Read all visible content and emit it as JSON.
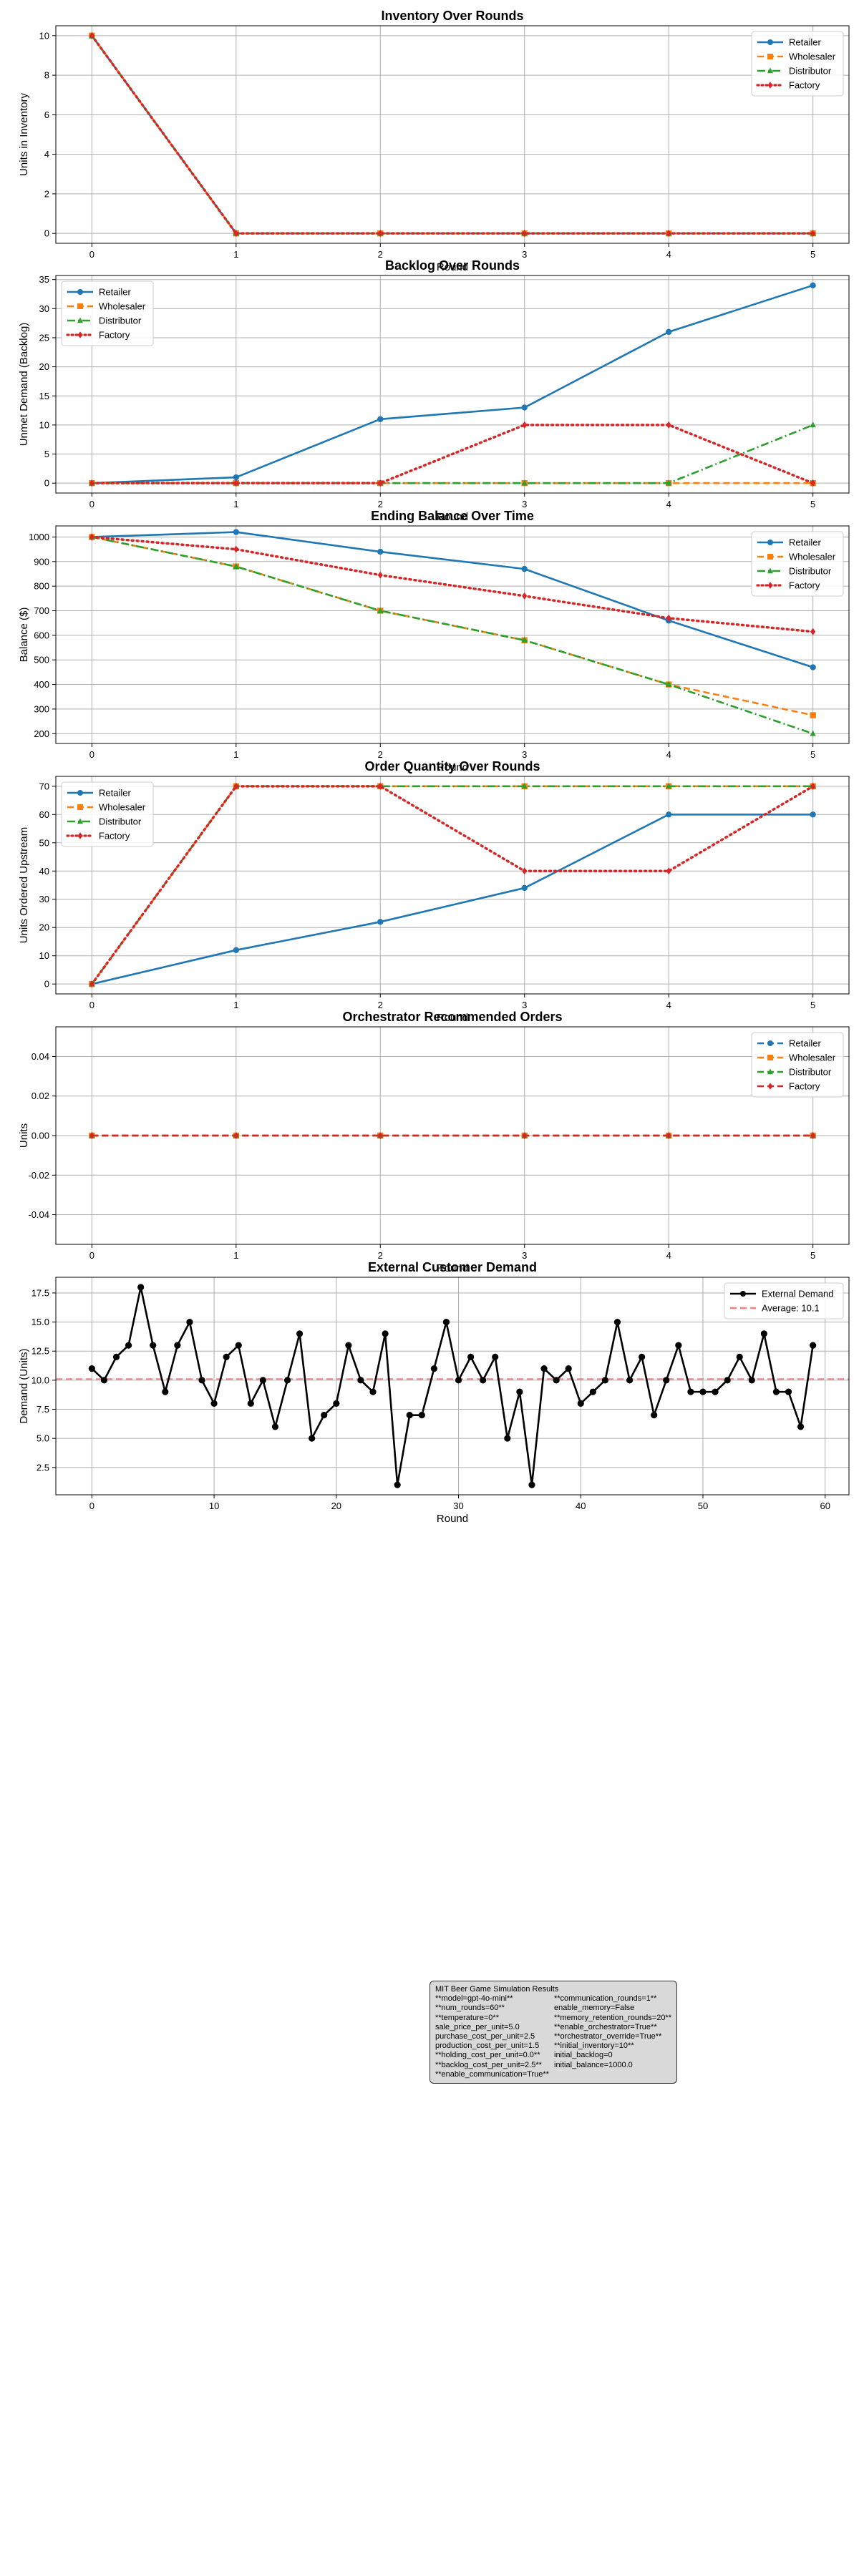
{
  "colors": {
    "retailer": "#1f77b4",
    "wholesaler": "#ff7f0e",
    "distributor": "#2ca02c",
    "factory": "#d62728",
    "external": "#000000",
    "average": "#ff7f7f"
  },
  "chart_data": [
    {
      "type": "line",
      "title": "Inventory Over Rounds",
      "xlabel": "Round",
      "ylabel": "Units in Inventory",
      "x": [
        0,
        1,
        2,
        3,
        4,
        5
      ],
      "xlim": [
        -0.25,
        5.25
      ],
      "ylim": [
        -0.5,
        10.5
      ],
      "xticks": [
        0,
        1,
        2,
        3,
        4,
        5
      ],
      "yticks": [
        0,
        2,
        4,
        6,
        8,
        10
      ],
      "grid": true,
      "legend": "upper-right",
      "series": [
        {
          "name": "Retailer",
          "values": [
            10,
            0,
            0,
            0,
            0,
            0
          ],
          "color": "#1f77b4",
          "style": "solid",
          "marker": "circle"
        },
        {
          "name": "Wholesaler",
          "values": [
            10,
            0,
            0,
            0,
            0,
            0
          ],
          "color": "#ff7f0e",
          "style": "dashed",
          "marker": "square"
        },
        {
          "name": "Distributor",
          "values": [
            10,
            0,
            0,
            0,
            0,
            0
          ],
          "color": "#2ca02c",
          "style": "dashdot",
          "marker": "triangle"
        },
        {
          "name": "Factory",
          "values": [
            10,
            0,
            0,
            0,
            0,
            0
          ],
          "color": "#d62728",
          "style": "dotted",
          "marker": "diamond"
        }
      ]
    },
    {
      "type": "line",
      "title": "Backlog Over Rounds",
      "xlabel": "Round",
      "ylabel": "Unmet Demand (Backlog)",
      "x": [
        0,
        1,
        2,
        3,
        4,
        5
      ],
      "xlim": [
        -0.25,
        5.25
      ],
      "ylim": [
        -1.7,
        35.7
      ],
      "xticks": [
        0,
        1,
        2,
        3,
        4,
        5
      ],
      "yticks": [
        0,
        5,
        10,
        15,
        20,
        25,
        30,
        35
      ],
      "grid": true,
      "legend": "upper-left",
      "series": [
        {
          "name": "Retailer",
          "values": [
            0,
            1,
            11,
            13,
            26,
            34
          ],
          "color": "#1f77b4",
          "style": "solid",
          "marker": "circle"
        },
        {
          "name": "Wholesaler",
          "values": [
            0,
            0,
            0,
            0,
            0,
            0
          ],
          "color": "#ff7f0e",
          "style": "dashed",
          "marker": "square"
        },
        {
          "name": "Distributor",
          "values": [
            0,
            0,
            0,
            0,
            0,
            10
          ],
          "color": "#2ca02c",
          "style": "dashdot",
          "marker": "triangle"
        },
        {
          "name": "Factory",
          "values": [
            0,
            0,
            0,
            10,
            10,
            0
          ],
          "color": "#d62728",
          "style": "dotted",
          "marker": "diamond"
        }
      ]
    },
    {
      "type": "line",
      "title": "Ending Balance Over Time",
      "xlabel": "Round",
      "ylabel": "Balance ($)",
      "x": [
        0,
        1,
        2,
        3,
        4,
        5
      ],
      "xlim": [
        -0.25,
        5.25
      ],
      "ylim": [
        160,
        1045
      ],
      "xticks": [
        0,
        1,
        2,
        3,
        4,
        5
      ],
      "yticks": [
        200,
        300,
        400,
        500,
        600,
        700,
        800,
        900,
        1000
      ],
      "grid": true,
      "legend": "upper-right",
      "series": [
        {
          "name": "Retailer",
          "values": [
            1000,
            1020,
            940,
            870,
            660,
            470
          ],
          "color": "#1f77b4",
          "style": "solid",
          "marker": "circle"
        },
        {
          "name": "Wholesaler",
          "values": [
            1000,
            880,
            700,
            580,
            400,
            275
          ],
          "color": "#ff7f0e",
          "style": "dashed",
          "marker": "square"
        },
        {
          "name": "Distributor",
          "values": [
            1000,
            880,
            700,
            580,
            400,
            200
          ],
          "color": "#2ca02c",
          "style": "dashdot",
          "marker": "triangle"
        },
        {
          "name": "Factory",
          "values": [
            1000,
            950,
            845,
            760,
            670,
            615
          ],
          "color": "#d62728",
          "style": "dotted",
          "marker": "diamond"
        }
      ]
    },
    {
      "type": "line",
      "title": "Order Quantity Over Rounds",
      "xlabel": "Round",
      "ylabel": "Units Ordered Upstream",
      "x": [
        0,
        1,
        2,
        3,
        4,
        5
      ],
      "xlim": [
        -0.25,
        5.25
      ],
      "ylim": [
        -3.5,
        73.5
      ],
      "xticks": [
        0,
        1,
        2,
        3,
        4,
        5
      ],
      "yticks": [
        0,
        10,
        20,
        30,
        40,
        50,
        60,
        70
      ],
      "grid": true,
      "legend": "upper-left",
      "series": [
        {
          "name": "Retailer",
          "values": [
            0,
            12,
            22,
            34,
            60,
            60
          ],
          "color": "#1f77b4",
          "style": "solid",
          "marker": "circle"
        },
        {
          "name": "Wholesaler",
          "values": [
            0,
            70,
            70,
            70,
            70,
            70
          ],
          "color": "#ff7f0e",
          "style": "dashed",
          "marker": "square"
        },
        {
          "name": "Distributor",
          "values": [
            0,
            70,
            70,
            70,
            70,
            70
          ],
          "color": "#2ca02c",
          "style": "dashdot",
          "marker": "triangle"
        },
        {
          "name": "Factory",
          "values": [
            0,
            70,
            70,
            40,
            40,
            70
          ],
          "color": "#d62728",
          "style": "dotted",
          "marker": "diamond"
        }
      ]
    },
    {
      "type": "line",
      "title": "Orchestrator Recommended Orders",
      "xlabel": "Round",
      "ylabel": "Units",
      "x": [
        0,
        1,
        2,
        3,
        4,
        5
      ],
      "xlim": [
        -0.25,
        5.25
      ],
      "ylim": [
        -0.055,
        0.055
      ],
      "xticks": [
        0,
        1,
        2,
        3,
        4,
        5
      ],
      "yticks": [
        -0.04,
        -0.02,
        0.0,
        0.02,
        0.04
      ],
      "yticklabels": [
        "-0.04",
        "-0.02",
        "0.00",
        "0.02",
        "0.04"
      ],
      "grid": true,
      "legend": "upper-right",
      "series": [
        {
          "name": "Retailer",
          "values": [
            0,
            0,
            0,
            0,
            0,
            0
          ],
          "color": "#1f77b4",
          "style": "dashed",
          "marker": "circle"
        },
        {
          "name": "Wholesaler",
          "values": [
            0,
            0,
            0,
            0,
            0,
            0
          ],
          "color": "#ff7f0e",
          "style": "dashed",
          "marker": "square"
        },
        {
          "name": "Distributor",
          "values": [
            0,
            0,
            0,
            0,
            0,
            0
          ],
          "color": "#2ca02c",
          "style": "dashed",
          "marker": "triangle"
        },
        {
          "name": "Factory",
          "values": [
            0,
            0,
            0,
            0,
            0,
            0
          ],
          "color": "#d62728",
          "style": "dashed",
          "marker": "diamond"
        }
      ]
    },
    {
      "type": "line",
      "title": "External Customer Demand",
      "xlabel": "Round",
      "ylabel": "Demand (Units)",
      "x": [
        0,
        1,
        2,
        3,
        4,
        5,
        6,
        7,
        8,
        9,
        10,
        11,
        12,
        13,
        14,
        15,
        16,
        17,
        18,
        19,
        20,
        21,
        22,
        23,
        24,
        25,
        26,
        27,
        28,
        29,
        30,
        31,
        32,
        33,
        34,
        35,
        36,
        37,
        38,
        39,
        40,
        41,
        42,
        43,
        44,
        45,
        46,
        47,
        48,
        49,
        50,
        51,
        52,
        53,
        54,
        55,
        56,
        57,
        58,
        59
      ],
      "xlim": [
        -2.95,
        61.95
      ],
      "ylim": [
        0.15,
        18.85
      ],
      "xticks": [
        0,
        10,
        20,
        30,
        40,
        50,
        60
      ],
      "yticks": [
        2.5,
        5.0,
        7.5,
        10.0,
        12.5,
        15.0,
        17.5
      ],
      "yticklabels": [
        "2.5",
        "5.0",
        "7.5",
        "10.0",
        "12.5",
        "15.0",
        "17.5"
      ],
      "grid": true,
      "legend": "upper-right",
      "series": [
        {
          "name": "External Demand",
          "values": [
            11,
            10,
            12,
            13,
            18,
            13,
            9,
            13,
            15,
            10,
            8,
            12,
            13,
            8,
            10,
            6,
            10,
            14,
            5,
            7,
            8,
            13,
            10,
            9,
            14,
            1,
            7,
            7,
            11,
            15,
            10,
            12,
            10,
            12,
            5,
            9,
            1,
            11,
            10,
            11,
            8,
            9,
            10,
            15,
            10,
            12,
            7,
            10,
            13,
            9,
            9,
            9,
            10,
            12,
            10,
            14,
            9,
            9,
            6,
            13
          ],
          "color": "#000000",
          "style": "solid",
          "marker": "circle"
        }
      ],
      "hlines": [
        {
          "name": "Average: 10.1",
          "value": 10.1,
          "color": "#ff7f7f",
          "style": "dashed"
        }
      ]
    }
  ],
  "config": {
    "title": "MIT Beer Game Simulation Results",
    "rows": [
      [
        "**model=gpt-4o-mini**",
        "**communication_rounds=1**"
      ],
      [
        "**num_rounds=60**",
        "enable_memory=False"
      ],
      [
        "**temperature=0**",
        "**memory_retention_rounds=20**"
      ],
      [
        "sale_price_per_unit=5.0",
        "**enable_orchestrator=True**"
      ],
      [
        "purchase_cost_per_unit=2.5",
        "**orchestrator_override=True**"
      ],
      [
        "production_cost_per_unit=1.5",
        "**initial_inventory=10**"
      ],
      [
        "**holding_cost_per_unit=0.0**",
        "initial_backlog=0"
      ],
      [
        "**backlog_cost_per_unit=2.5**",
        "initial_balance=1000.0"
      ],
      [
        "**enable_communication=True**",
        ""
      ]
    ]
  }
}
